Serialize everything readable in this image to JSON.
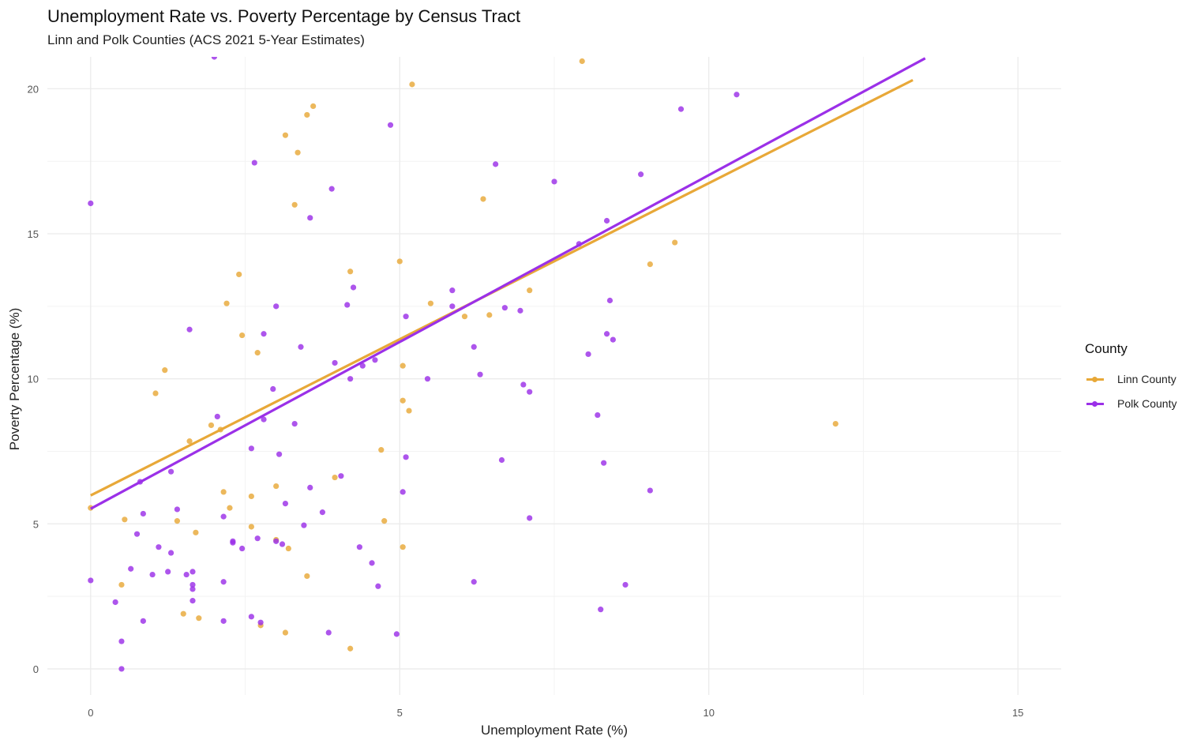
{
  "chart_data": {
    "type": "scatter",
    "title": "Unemployment Rate vs. Poverty Percentage by Census Tract",
    "subtitle": "Linn and Polk Counties (ACS 2021 5-Year Estimates)",
    "xlabel": "Unemployment Rate (%)",
    "ylabel": "Poverty Percentage (%)",
    "xlim": [
      -0.7,
      15.7
    ],
    "ylim": [
      -0.9,
      21.1
    ],
    "x_ticks": [
      0,
      5,
      10,
      15
    ],
    "y_ticks": [
      0,
      5,
      10,
      15,
      20
    ],
    "grid": true,
    "legend": {
      "title": "County",
      "position": "right"
    },
    "series": [
      {
        "name": "Linn County",
        "color": "#E8A838",
        "points": [
          [
            0,
            5.55
          ],
          [
            0.5,
            2.9
          ],
          [
            0.55,
            5.15
          ],
          [
            1.05,
            9.5
          ],
          [
            1.2,
            10.3
          ],
          [
            1.4,
            5.1
          ],
          [
            1.5,
            1.9
          ],
          [
            1.6,
            7.85
          ],
          [
            1.7,
            4.7
          ],
          [
            1.75,
            1.75
          ],
          [
            1.95,
            8.4
          ],
          [
            2.1,
            8.25
          ],
          [
            2.15,
            6.1
          ],
          [
            2.2,
            12.6
          ],
          [
            2.25,
            5.55
          ],
          [
            2.4,
            13.6
          ],
          [
            2.45,
            11.5
          ],
          [
            2.6,
            4.9
          ],
          [
            2.6,
            5.95
          ],
          [
            2.7,
            10.9
          ],
          [
            2.75,
            1.5
          ],
          [
            3.0,
            6.3
          ],
          [
            3.0,
            4.45
          ],
          [
            3.15,
            18.4
          ],
          [
            3.15,
            1.25
          ],
          [
            3.2,
            4.15
          ],
          [
            3.3,
            16.0
          ],
          [
            3.35,
            17.8
          ],
          [
            3.5,
            19.1
          ],
          [
            3.5,
            3.2
          ],
          [
            3.6,
            19.4
          ],
          [
            3.95,
            6.6
          ],
          [
            4.2,
            13.7
          ],
          [
            4.2,
            0.7
          ],
          [
            4.7,
            7.55
          ],
          [
            4.75,
            5.1
          ],
          [
            5.0,
            14.05
          ],
          [
            5.05,
            4.2
          ],
          [
            5.05,
            10.45
          ],
          [
            5.05,
            9.25
          ],
          [
            5.15,
            8.9
          ],
          [
            5.2,
            20.15
          ],
          [
            5.5,
            12.6
          ],
          [
            6.05,
            12.15
          ],
          [
            6.35,
            16.2
          ],
          [
            6.45,
            12.2
          ],
          [
            7.1,
            13.05
          ],
          [
            7.95,
            20.95
          ],
          [
            9.05,
            13.95
          ],
          [
            9.45,
            14.7
          ],
          [
            12.05,
            8.45
          ]
        ],
        "trend": {
          "x": [
            0,
            13.3
          ],
          "y": [
            5.98,
            20.3
          ]
        }
      },
      {
        "name": "Polk County",
        "color": "#9B30E8",
        "points": [
          [
            0,
            16.05
          ],
          [
            0,
            3.05
          ],
          [
            0.4,
            2.3
          ],
          [
            0.5,
            0.95
          ],
          [
            0.5,
            0.0
          ],
          [
            0.65,
            3.45
          ],
          [
            0.75,
            4.65
          ],
          [
            0.8,
            6.45
          ],
          [
            0.85,
            5.35
          ],
          [
            0.85,
            1.65
          ],
          [
            1.0,
            3.25
          ],
          [
            1.1,
            4.2
          ],
          [
            1.25,
            3.35
          ],
          [
            1.3,
            6.8
          ],
          [
            1.3,
            4.0
          ],
          [
            1.4,
            5.5
          ],
          [
            1.55,
            3.25
          ],
          [
            1.6,
            11.7
          ],
          [
            1.65,
            2.75
          ],
          [
            1.65,
            2.9
          ],
          [
            1.65,
            3.35
          ],
          [
            1.65,
            2.35
          ],
          [
            2.0,
            21.1
          ],
          [
            2.05,
            8.7
          ],
          [
            2.15,
            5.25
          ],
          [
            2.15,
            3.0
          ],
          [
            2.15,
            1.65
          ],
          [
            2.3,
            4.35
          ],
          [
            2.3,
            4.4
          ],
          [
            2.45,
            4.15
          ],
          [
            2.6,
            7.6
          ],
          [
            2.6,
            1.8
          ],
          [
            2.65,
            17.45
          ],
          [
            2.7,
            4.5
          ],
          [
            2.75,
            1.6
          ],
          [
            2.8,
            11.55
          ],
          [
            2.8,
            8.6
          ],
          [
            2.95,
            9.65
          ],
          [
            3.0,
            12.5
          ],
          [
            3.0,
            4.4
          ],
          [
            3.05,
            7.4
          ],
          [
            3.1,
            4.3
          ],
          [
            3.15,
            5.7
          ],
          [
            3.3,
            8.45
          ],
          [
            3.4,
            11.1
          ],
          [
            3.45,
            4.95
          ],
          [
            3.55,
            6.25
          ],
          [
            3.55,
            15.55
          ],
          [
            3.75,
            5.4
          ],
          [
            3.85,
            1.25
          ],
          [
            3.9,
            16.55
          ],
          [
            3.95,
            10.55
          ],
          [
            4.05,
            6.65
          ],
          [
            4.15,
            12.55
          ],
          [
            4.2,
            10.0
          ],
          [
            4.25,
            13.15
          ],
          [
            4.35,
            4.2
          ],
          [
            4.4,
            10.45
          ],
          [
            4.55,
            3.65
          ],
          [
            4.6,
            10.65
          ],
          [
            4.65,
            2.85
          ],
          [
            4.85,
            18.75
          ],
          [
            4.95,
            1.2
          ],
          [
            5.05,
            6.1
          ],
          [
            5.1,
            12.15
          ],
          [
            5.1,
            7.3
          ],
          [
            5.45,
            10.0
          ],
          [
            5.85,
            13.05
          ],
          [
            5.85,
            12.5
          ],
          [
            6.2,
            11.1
          ],
          [
            6.2,
            3.0
          ],
          [
            6.3,
            10.15
          ],
          [
            6.55,
            17.4
          ],
          [
            6.65,
            7.2
          ],
          [
            6.7,
            12.45
          ],
          [
            6.95,
            12.35
          ],
          [
            7.0,
            9.8
          ],
          [
            7.1,
            5.2
          ],
          [
            7.1,
            9.55
          ],
          [
            7.5,
            16.8
          ],
          [
            7.9,
            14.65
          ],
          [
            8.05,
            10.85
          ],
          [
            8.2,
            8.75
          ],
          [
            8.25,
            2.05
          ],
          [
            8.3,
            7.1
          ],
          [
            8.35,
            11.55
          ],
          [
            8.35,
            15.45
          ],
          [
            8.4,
            12.7
          ],
          [
            8.45,
            11.35
          ],
          [
            8.65,
            2.9
          ],
          [
            8.9,
            17.05
          ],
          [
            9.05,
            6.15
          ],
          [
            9.55,
            19.3
          ],
          [
            10.45,
            19.8
          ]
        ],
        "trend": {
          "x": [
            0,
            13.5
          ],
          "y": [
            5.52,
            21.05
          ]
        }
      }
    ]
  }
}
